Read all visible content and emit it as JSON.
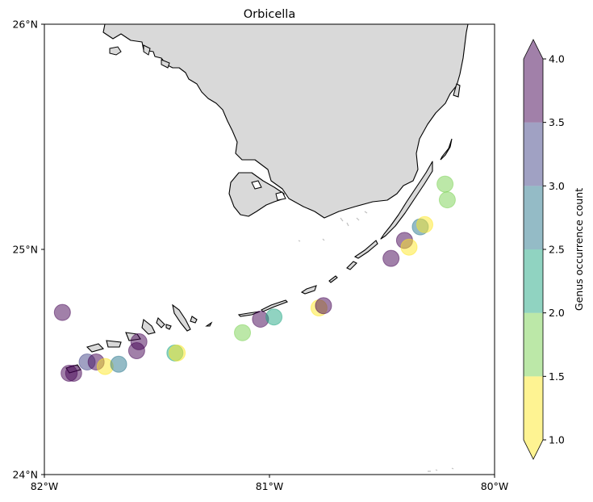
{
  "title": "Orbicella",
  "map": {
    "lon_range": [
      -82,
      -80
    ],
    "lat_range": [
      24,
      26
    ],
    "land_color": "#d9d9d9",
    "coast_color": "#000000",
    "x_ticks": [
      {
        "value": -82,
        "label": "82°W"
      },
      {
        "value": -81,
        "label": "81°W"
      },
      {
        "value": -80,
        "label": "80°W"
      }
    ],
    "y_ticks": [
      {
        "value": 26,
        "label": "26°N"
      },
      {
        "value": 25,
        "label": "25°N"
      },
      {
        "value": 24,
        "label": "24°N"
      }
    ],
    "points": [
      {
        "lon": -81.92,
        "lat": 24.72,
        "count": 4
      },
      {
        "lon": -81.89,
        "lat": 24.45,
        "count": 4
      },
      {
        "lon": -81.87,
        "lat": 24.45,
        "count": 4
      },
      {
        "lon": -81.81,
        "lat": 24.5,
        "count": 3
      },
      {
        "lon": -81.77,
        "lat": 24.5,
        "count": 3.5
      },
      {
        "lon": -81.73,
        "lat": 24.48,
        "count": 1
      },
      {
        "lon": -81.67,
        "lat": 24.49,
        "count": 2.5
      },
      {
        "lon": -81.59,
        "lat": 24.55,
        "count": 4
      },
      {
        "lon": -81.58,
        "lat": 24.59,
        "count": 4
      },
      {
        "lon": -81.42,
        "lat": 24.54,
        "count": 2
      },
      {
        "lon": -81.41,
        "lat": 24.54,
        "count": 1
      },
      {
        "lon": -81.12,
        "lat": 24.63,
        "count": 1.5
      },
      {
        "lon": -81.04,
        "lat": 24.69,
        "count": 4
      },
      {
        "lon": -80.98,
        "lat": 24.7,
        "count": 2
      },
      {
        "lon": -80.78,
        "lat": 24.74,
        "count": 1
      },
      {
        "lon": -80.76,
        "lat": 24.75,
        "count": 4
      },
      {
        "lon": -80.46,
        "lat": 24.96,
        "count": 4
      },
      {
        "lon": -80.4,
        "lat": 25.04,
        "count": 4
      },
      {
        "lon": -80.38,
        "lat": 25.01,
        "count": 1
      },
      {
        "lon": -80.33,
        "lat": 25.1,
        "count": 2.5
      },
      {
        "lon": -80.31,
        "lat": 25.11,
        "count": 1
      },
      {
        "lon": -80.22,
        "lat": 25.29,
        "count": 1.5
      },
      {
        "lon": -80.21,
        "lat": 25.22,
        "count": 1.5
      }
    ]
  },
  "colorbar": {
    "label": "Genus occurrence count",
    "min": 1.0,
    "max": 4.0,
    "levels": [
      1.0,
      1.5,
      2.0,
      2.5,
      3.0,
      3.5,
      4.0
    ],
    "tick_labels": [
      "1.0",
      "1.5",
      "2.0",
      "2.5",
      "3.0",
      "3.5",
      "4.0"
    ],
    "colors": [
      "#fde725",
      "#7ad151",
      "#22a884",
      "#2a788e",
      "#414487",
      "#440154"
    ],
    "under_color": "#fde725",
    "over_color": "#440154",
    "alpha": 0.5
  }
}
